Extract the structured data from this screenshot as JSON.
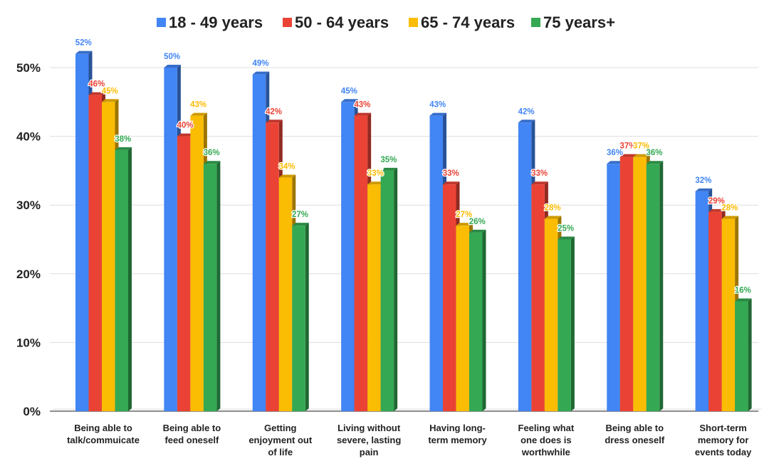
{
  "chart_data": {
    "type": "bar",
    "title": "",
    "xlabel": "",
    "ylabel": "",
    "ylim": [
      0,
      50
    ],
    "y_ticks": [
      "0%",
      "10%",
      "20%",
      "30%",
      "40%",
      "50%"
    ],
    "grid": true,
    "legend_position": "top",
    "categories": [
      [
        "Being able to",
        "talk/commuicate"
      ],
      [
        "Being able to",
        "feed oneself"
      ],
      [
        "Getting",
        "enjoyment out",
        "of life"
      ],
      [
        "Living without",
        "severe, lasting",
        "pain"
      ],
      [
        "Having long-",
        "term memory"
      ],
      [
        "Feeling what",
        "one does is",
        "worthwhile"
      ],
      [
        "Being able to",
        "dress oneself"
      ],
      [
        "Short-term",
        "memory for",
        "events today"
      ]
    ],
    "series": [
      {
        "name": "18 - 49 years",
        "color": "#4285f4",
        "values": [
          52,
          50,
          49,
          45,
          43,
          42,
          36,
          32
        ],
        "labels": [
          "52%",
          "50%",
          "49%",
          "45%",
          "43%",
          "42%",
          "36%",
          "32%"
        ]
      },
      {
        "name": "50 - 64 years",
        "color": "#ea4335",
        "values": [
          46,
          40,
          42,
          43,
          33,
          33,
          37,
          29
        ],
        "labels": [
          "46%",
          "40%",
          "42%",
          "43%",
          "33%",
          "33%",
          "37%",
          "29%"
        ]
      },
      {
        "name": "65 - 74 years",
        "color": "#fbbc04",
        "values": [
          45,
          43,
          34,
          33,
          27,
          28,
          37,
          28
        ],
        "labels": [
          "45%",
          "43%",
          "34%",
          "33%",
          "27%",
          "28%",
          "37%",
          "28%"
        ]
      },
      {
        "name": "75 years+",
        "color": "#34a853",
        "values": [
          38,
          36,
          27,
          35,
          26,
          25,
          36,
          16
        ],
        "labels": [
          "38%",
          "36%",
          "27%",
          "35%",
          "26%",
          "25%",
          "36%",
          "16%"
        ]
      }
    ]
  }
}
